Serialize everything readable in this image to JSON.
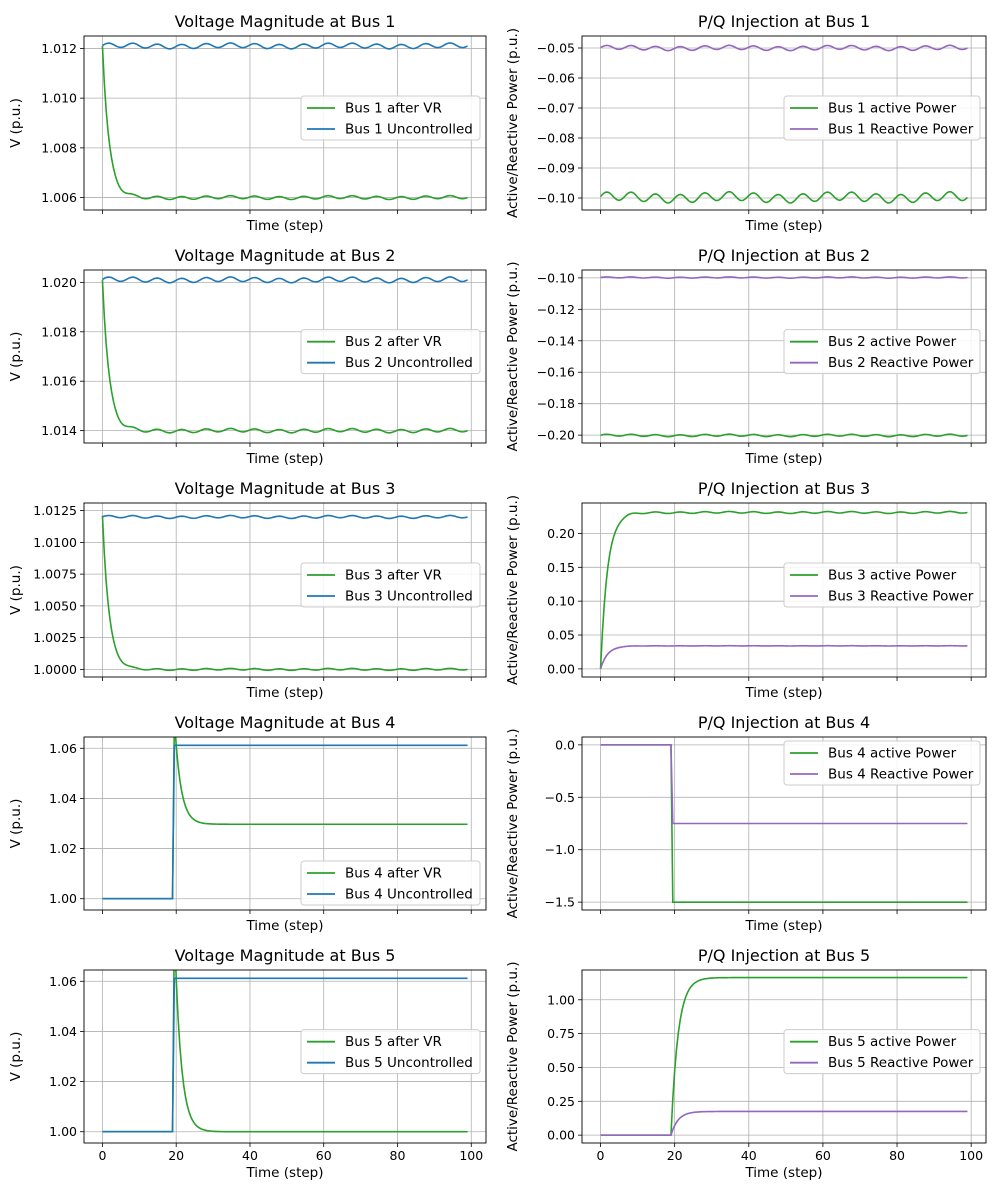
{
  "figure": {
    "layout": "5 rows x 2 columns of line charts, shared x axis per column"
  },
  "colors": {
    "green": "#2ca02c",
    "blue": "#1f77b4",
    "purple": "#9467bd",
    "grid": "#b0b0b0"
  },
  "chart_data": [
    {
      "type": "line",
      "title": "Voltage Magnitude at Bus 1",
      "xlabel": "Time (step)",
      "ylabel": "V (p.u.)",
      "xlim": [
        -5,
        104
      ],
      "ylim": [
        1.0055,
        1.0125
      ],
      "xticks": [
        0,
        20,
        40,
        60,
        80,
        100
      ],
      "show_xtick_labels": false,
      "yticks": [
        1.006,
        1.008,
        1.01,
        1.012
      ],
      "ytick_labels": [
        "1.006",
        "1.008",
        "1.010",
        "1.012"
      ],
      "grid": true,
      "legend_position": "center-right",
      "series": [
        {
          "name": "Bus 1 after VR",
          "color": "#2ca02c",
          "shape": "decay",
          "start": 1.0121,
          "end": 1.006,
          "step_at": 0,
          "osc": 8e-05
        },
        {
          "name": "Bus 1 Uncontrolled",
          "color": "#1f77b4",
          "shape": "flat",
          "start": 1.0121,
          "end": 1.0121,
          "osc": 0.00012
        }
      ]
    },
    {
      "type": "line",
      "title": "P/Q Injection at Bus 1",
      "xlabel": "Time (step)",
      "ylabel": "Active/Reactive Power (p.u.)",
      "xlim": [
        -5,
        104
      ],
      "ylim": [
        -0.104,
        -0.046
      ],
      "xticks": [
        0,
        20,
        40,
        60,
        80,
        100
      ],
      "show_xtick_labels": false,
      "yticks": [
        -0.1,
        -0.09,
        -0.08,
        -0.07,
        -0.06,
        -0.05
      ],
      "ytick_labels": [
        "−0.10",
        "−0.09",
        "−0.08",
        "−0.07",
        "−0.06",
        "−0.05"
      ],
      "grid": true,
      "legend_position": "center-right",
      "series": [
        {
          "name": "Bus 1 active Power",
          "color": "#2ca02c",
          "shape": "flat",
          "start": -0.0998,
          "end": -0.0998,
          "osc": 0.0019
        },
        {
          "name": "Bus 1 Reactive Power",
          "color": "#9467bd",
          "shape": "flat",
          "start": -0.05,
          "end": -0.05,
          "osc": 0.0009
        }
      ]
    },
    {
      "type": "line",
      "title": "Voltage Magnitude at Bus 2",
      "xlabel": "Time (step)",
      "ylabel": "V (p.u.)",
      "xlim": [
        -5,
        104
      ],
      "ylim": [
        1.0135,
        1.0205
      ],
      "xticks": [
        0,
        20,
        40,
        60,
        80,
        100
      ],
      "show_xtick_labels": false,
      "yticks": [
        1.014,
        1.016,
        1.018,
        1.02
      ],
      "ytick_labels": [
        "1.014",
        "1.016",
        "1.018",
        "1.020"
      ],
      "grid": true,
      "legend_position": "center-right",
      "series": [
        {
          "name": "Bus 2 after VR",
          "color": "#2ca02c",
          "shape": "decay",
          "start": 1.0201,
          "end": 1.014,
          "step_at": 0,
          "osc": 9e-05
        },
        {
          "name": "Bus 2 Uncontrolled",
          "color": "#1f77b4",
          "shape": "flat",
          "start": 1.0201,
          "end": 1.0201,
          "osc": 0.00012
        }
      ]
    },
    {
      "type": "line",
      "title": "P/Q Injection at Bus 2",
      "xlabel": "Time (step)",
      "ylabel": "Active/Reactive Power (p.u.)",
      "xlim": [
        -5,
        104
      ],
      "ylim": [
        -0.205,
        -0.095
      ],
      "xticks": [
        0,
        20,
        40,
        60,
        80,
        100
      ],
      "show_xtick_labels": false,
      "yticks": [
        -0.2,
        -0.18,
        -0.16,
        -0.14,
        -0.12,
        -0.1
      ],
      "ytick_labels": [
        "−0.20",
        "−0.18",
        "−0.16",
        "−0.14",
        "−0.12",
        "−0.10"
      ],
      "grid": true,
      "legend_position": "center-right",
      "series": [
        {
          "name": "Bus 2 active Power",
          "color": "#2ca02c",
          "shape": "flat",
          "start": -0.2002,
          "end": -0.2002,
          "osc": 0.0008
        },
        {
          "name": "Bus 2 Reactive Power",
          "color": "#9467bd",
          "shape": "flat",
          "start": -0.0998,
          "end": -0.0998,
          "osc": 0.0004
        }
      ]
    },
    {
      "type": "line",
      "title": "Voltage Magnitude at Bus 3",
      "xlabel": "Time (step)",
      "ylabel": "V (p.u.)",
      "xlim": [
        -5,
        104
      ],
      "ylim": [
        0.9994,
        1.0131
      ],
      "xticks": [
        0,
        20,
        40,
        60,
        80,
        100
      ],
      "show_xtick_labels": false,
      "yticks": [
        1.0,
        1.0025,
        1.005,
        1.0075,
        1.01,
        1.0125
      ],
      "ytick_labels": [
        "1.0000",
        "1.0025",
        "1.0050",
        "1.0075",
        "1.0100",
        "1.0125"
      ],
      "grid": true,
      "legend_position": "center-right",
      "series": [
        {
          "name": "Bus 3 after VR",
          "color": "#2ca02c",
          "shape": "decay",
          "start": 1.0121,
          "end": 1.0,
          "step_at": 0,
          "osc": 8e-05
        },
        {
          "name": "Bus 3 Uncontrolled",
          "color": "#1f77b4",
          "shape": "flat",
          "start": 1.012,
          "end": 1.012,
          "osc": 0.00012
        }
      ]
    },
    {
      "type": "line",
      "title": "P/Q Injection at Bus 3",
      "xlabel": "Time (step)",
      "ylabel": "Active/Reactive Power (p.u.)",
      "xlim": [
        -5,
        104
      ],
      "ylim": [
        -0.012,
        0.245
      ],
      "xticks": [
        0,
        20,
        40,
        60,
        80,
        100
      ],
      "show_xtick_labels": false,
      "yticks": [
        0.0,
        0.05,
        0.1,
        0.15,
        0.2
      ],
      "ytick_labels": [
        "0.00",
        "0.05",
        "0.10",
        "0.15",
        "0.20"
      ],
      "grid": true,
      "legend_position": "center-right",
      "series": [
        {
          "name": "Bus 3 active Power",
          "color": "#2ca02c",
          "shape": "rise",
          "start": 0.0,
          "end": 0.231,
          "step_at": 0,
          "osc": 0.0015
        },
        {
          "name": "Bus 3 Reactive Power",
          "color": "#9467bd",
          "shape": "rise",
          "start": 0.0,
          "end": 0.034,
          "step_at": 0,
          "osc": 0.0002
        }
      ]
    },
    {
      "type": "line",
      "title": "Voltage Magnitude at Bus 4",
      "xlabel": "Time (step)",
      "ylabel": "V (p.u.)",
      "xlim": [
        -5,
        104
      ],
      "ylim": [
        0.9955,
        1.0645
      ],
      "xticks": [
        0,
        20,
        40,
        60,
        80,
        100
      ],
      "show_xtick_labels": false,
      "yticks": [
        1.0,
        1.02,
        1.04,
        1.06
      ],
      "ytick_labels": [
        "1.00",
        "1.02",
        "1.04",
        "1.06"
      ],
      "grid": true,
      "legend_position": "lower-right",
      "series": [
        {
          "name": "Bus 4 after VR",
          "color": "#2ca02c",
          "shape": "spike",
          "start": 1.0,
          "peak": 1.0612,
          "end": 1.0297,
          "step_at": 19,
          "osc": 0
        },
        {
          "name": "Bus 4 Uncontrolled",
          "color": "#1f77b4",
          "shape": "step",
          "start": 1.0,
          "end": 1.0612,
          "step_at": 19,
          "osc": 0
        }
      ]
    },
    {
      "type": "line",
      "title": "P/Q Injection at Bus 4",
      "xlabel": "Time (step)",
      "ylabel": "Active/Reactive Power (p.u.)",
      "xlim": [
        -5,
        104
      ],
      "ylim": [
        -1.575,
        0.075
      ],
      "xticks": [
        0,
        20,
        40,
        60,
        80,
        100
      ],
      "show_xtick_labels": false,
      "yticks": [
        -1.5,
        -1.0,
        -0.5,
        0.0
      ],
      "ytick_labels": [
        "−1.5",
        "−1.0",
        "−0.5",
        "0.0"
      ],
      "grid": true,
      "legend_position": "upper-right",
      "series": [
        {
          "name": "Bus 4 active Power",
          "color": "#2ca02c",
          "shape": "step",
          "start": 0.0,
          "end": -1.5,
          "step_at": 19,
          "osc": 0
        },
        {
          "name": "Bus 4 Reactive Power",
          "color": "#9467bd",
          "shape": "step",
          "start": 0.0,
          "end": -0.75,
          "step_at": 19,
          "osc": 0
        }
      ]
    },
    {
      "type": "line",
      "title": "Voltage Magnitude at Bus 5",
      "xlabel": "Time (step)",
      "ylabel": "V (p.u.)",
      "xlim": [
        -5,
        104
      ],
      "ylim": [
        0.9955,
        1.0645
      ],
      "xticks": [
        0,
        20,
        40,
        60,
        80,
        100
      ],
      "show_xtick_labels": true,
      "yticks": [
        1.0,
        1.02,
        1.04,
        1.06
      ],
      "ytick_labels": [
        "1.00",
        "1.02",
        "1.04",
        "1.06"
      ],
      "xtick_labels": [
        "0",
        "20",
        "40",
        "60",
        "80",
        "100"
      ],
      "grid": true,
      "legend_position": "center-right",
      "series": [
        {
          "name": "Bus 5 after VR",
          "color": "#2ca02c",
          "shape": "spike",
          "start": 1.0,
          "peak": 1.0612,
          "end": 1.0,
          "step_at": 19,
          "osc": 0
        },
        {
          "name": "Bus 5 Uncontrolled",
          "color": "#1f77b4",
          "shape": "step",
          "start": 1.0,
          "end": 1.0612,
          "step_at": 19,
          "osc": 0
        }
      ]
    },
    {
      "type": "line",
      "title": "P/Q Injection at Bus 5",
      "xlabel": "Time (step)",
      "ylabel": "Active/Reactive Power (p.u.)",
      "xlim": [
        -5,
        104
      ],
      "ylim": [
        -0.058,
        1.22
      ],
      "xticks": [
        0,
        20,
        40,
        60,
        80,
        100
      ],
      "show_xtick_labels": true,
      "yticks": [
        0.0,
        0.25,
        0.5,
        0.75,
        1.0
      ],
      "ytick_labels": [
        "0.00",
        "0.25",
        "0.50",
        "0.75",
        "1.00"
      ],
      "xtick_labels": [
        "0",
        "20",
        "40",
        "60",
        "80",
        "100"
      ],
      "grid": true,
      "legend_position": "center-right",
      "series": [
        {
          "name": "Bus 5 active Power",
          "color": "#2ca02c",
          "shape": "rise",
          "start": 0.0,
          "end": 1.164,
          "step_at": 19,
          "osc": 0
        },
        {
          "name": "Bus 5 Reactive Power",
          "color": "#9467bd",
          "shape": "rise",
          "start": 0.0,
          "end": 0.175,
          "step_at": 19,
          "osc": 0
        }
      ]
    }
  ]
}
